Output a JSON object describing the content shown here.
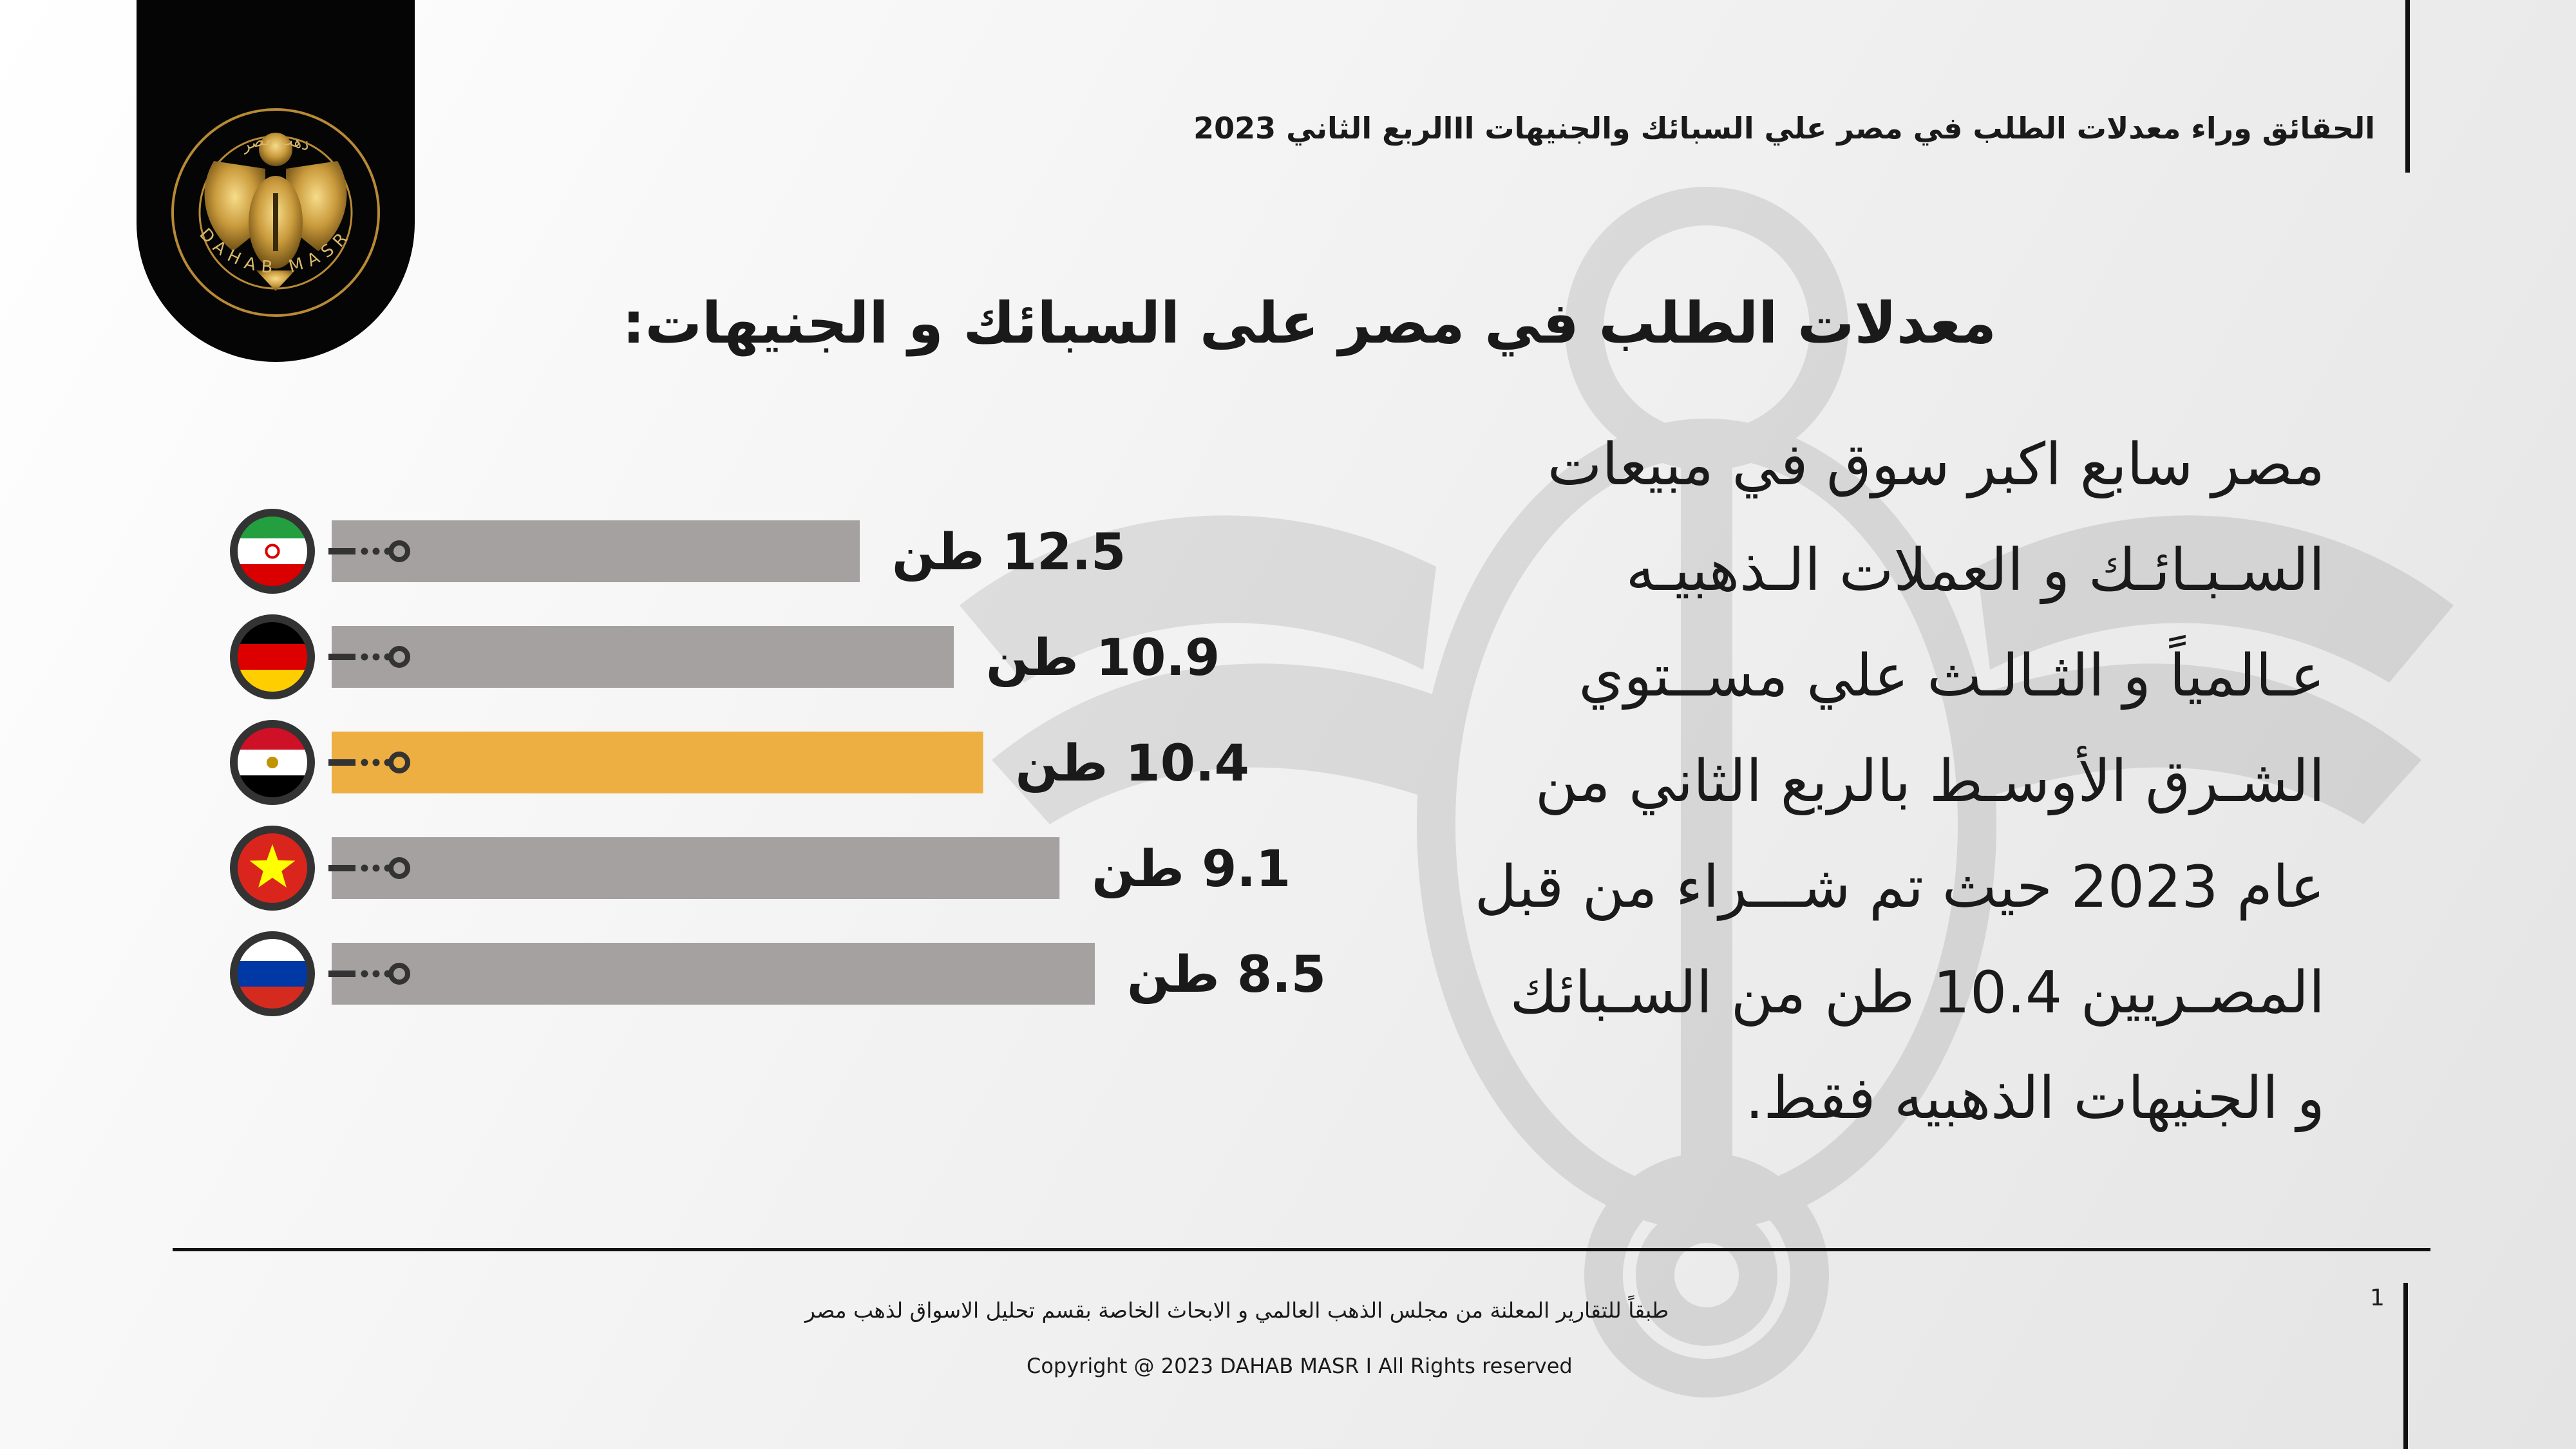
{
  "header": {
    "title": "الحقائق وراء معدلات الطلب في مصر علي السبائك والجنيهات اIالربع الثاني 2023"
  },
  "logo": {
    "arabic_text": "ذهب مصر",
    "latin_text": "DAHAB MASR"
  },
  "main": {
    "title": "معدلات الطلب في مصر على السبائك و الجنيهات:",
    "paragraph_lines": [
      "مصر سابع اكبر سوق في مبيعات",
      "السـبـائـك و العملات الـذهبيـه",
      "عـالمياً و الثـالـث علي مســتوي",
      "الشـرق الأوسـط  بالربع الثاني من",
      "عام 2023 حيث تم شـــراء من قبل",
      "المصـريين 10.4 طن من السـبائك",
      "و الجنيهات الذهبيه فقط."
    ]
  },
  "chart_data": {
    "type": "bar",
    "orientation": "horizontal",
    "unit": "طن",
    "categories": [
      "Iran",
      "Germany",
      "Egypt",
      "Vietnam",
      "Russia"
    ],
    "values": [
      12.5,
      10.9,
      10.4,
      9.1,
      8.5
    ],
    "labels": [
      "12.5 طن",
      "10.9 طن",
      "10.4 طن",
      "9.1 طن",
      "8.5 طن"
    ],
    "flags": [
      "iran-flag-icon",
      "germany-flag-icon",
      "egypt-flag-icon",
      "vietnam-flag-icon",
      "russia-flag-icon"
    ],
    "highlight_index": 2,
    "colors": {
      "bar": "#a6a1a1",
      "highlight": "#eeaf42",
      "connector": "#333333"
    }
  },
  "footer": {
    "source": "طبقاً للتقارير المعلنة من مجلس الذهب العالمي و الابحاث الخاصة بقسم تحليل الاسواق لذهب مصر",
    "copyright": "Copyright @ 2023 DAHAB MASR I All Rights reserved",
    "page_number": "1"
  }
}
